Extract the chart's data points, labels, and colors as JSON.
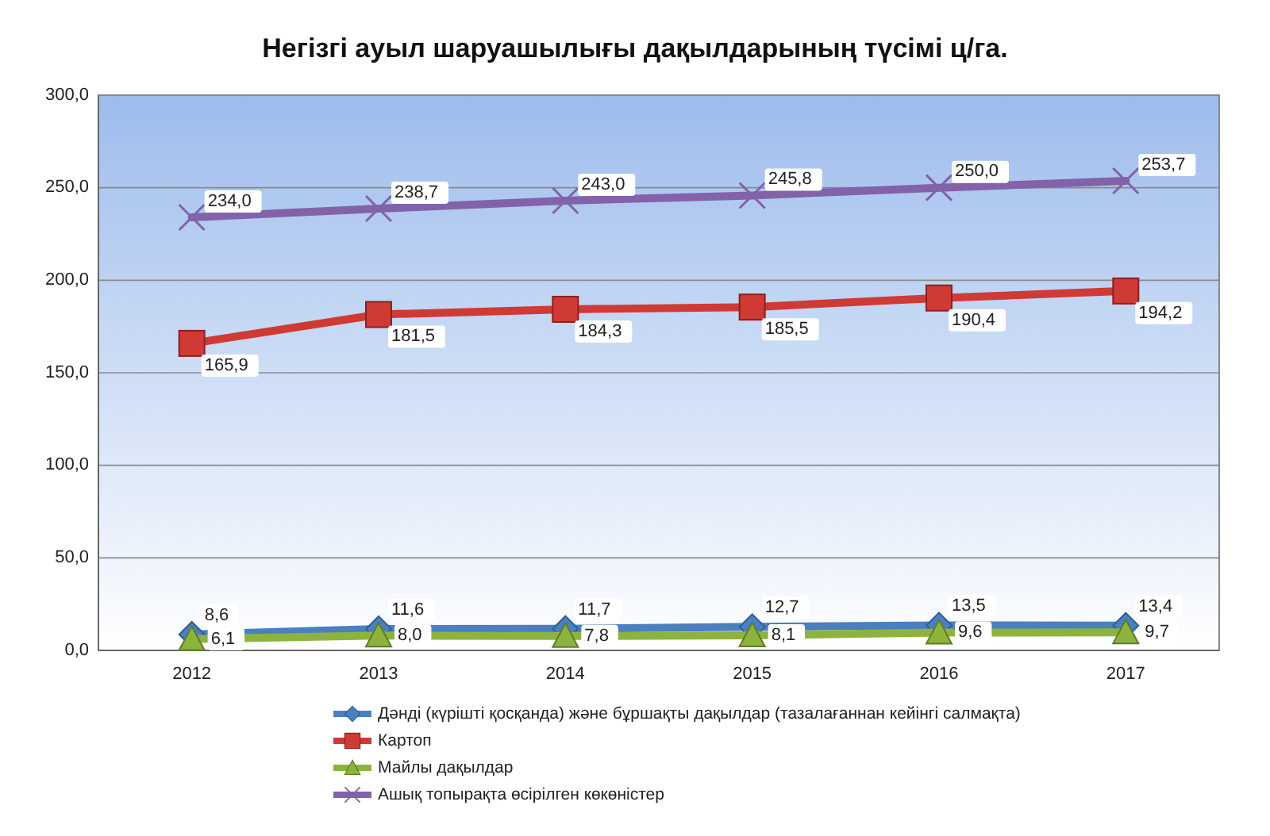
{
  "chart_data": {
    "type": "line",
    "title": "Негізгі ауыл шаруашылығы дақылдарының түсімі ц/га.",
    "categories": [
      "2012",
      "2013",
      "2014",
      "2015",
      "2016",
      "2017"
    ],
    "series": [
      {
        "name": "Дәнді (күрішті қосқанда) және бұршақты дақылдар (тазалағаннан кейінгі салмақта)",
        "color": "#4a7fc0",
        "marker": "diamond",
        "values": [
          8.6,
          11.6,
          11.7,
          12.7,
          13.5,
          13.4
        ],
        "value_labels": [
          "8,6",
          "11,6",
          "11,7",
          "12,7",
          "13,5",
          "13,4"
        ]
      },
      {
        "name": "Картоп",
        "color": "#cf3a35",
        "marker": "square",
        "values": [
          165.9,
          181.5,
          184.3,
          185.5,
          190.4,
          194.2
        ],
        "value_labels": [
          "165,9",
          "181,5",
          "184,3",
          "185,5",
          "190,4",
          "194,2"
        ]
      },
      {
        "name": "Майлы дақылдар",
        "color": "#8db33f",
        "marker": "triangle",
        "values": [
          6.1,
          8.0,
          7.8,
          8.1,
          9.6,
          9.7
        ],
        "value_labels": [
          "6,1",
          "8,0",
          "7,8",
          "8,1",
          "9,6",
          "9,7"
        ]
      },
      {
        "name": "Ашық топырақта өсірілген көкөністер",
        "color": "#8262a8",
        "marker": "cross",
        "values": [
          234.0,
          238.7,
          243.0,
          245.8,
          250.0,
          253.7
        ],
        "value_labels": [
          "234,0",
          "238,7",
          "243,0",
          "245,8",
          "250,0",
          "253,7"
        ]
      }
    ],
    "ylim": [
      0,
      300
    ],
    "yticks": [
      {
        "value": 0,
        "label": "0,0"
      },
      {
        "value": 50,
        "label": "50,0"
      },
      {
        "value": 100,
        "label": "100,0"
      },
      {
        "value": 150,
        "label": "150,0"
      },
      {
        "value": 200,
        "label": "200,0"
      },
      {
        "value": 250,
        "label": "250,0"
      },
      {
        "value": 300,
        "label": "300,0"
      }
    ],
    "grid": "y",
    "legend": "bottom",
    "line_style": "solid"
  }
}
